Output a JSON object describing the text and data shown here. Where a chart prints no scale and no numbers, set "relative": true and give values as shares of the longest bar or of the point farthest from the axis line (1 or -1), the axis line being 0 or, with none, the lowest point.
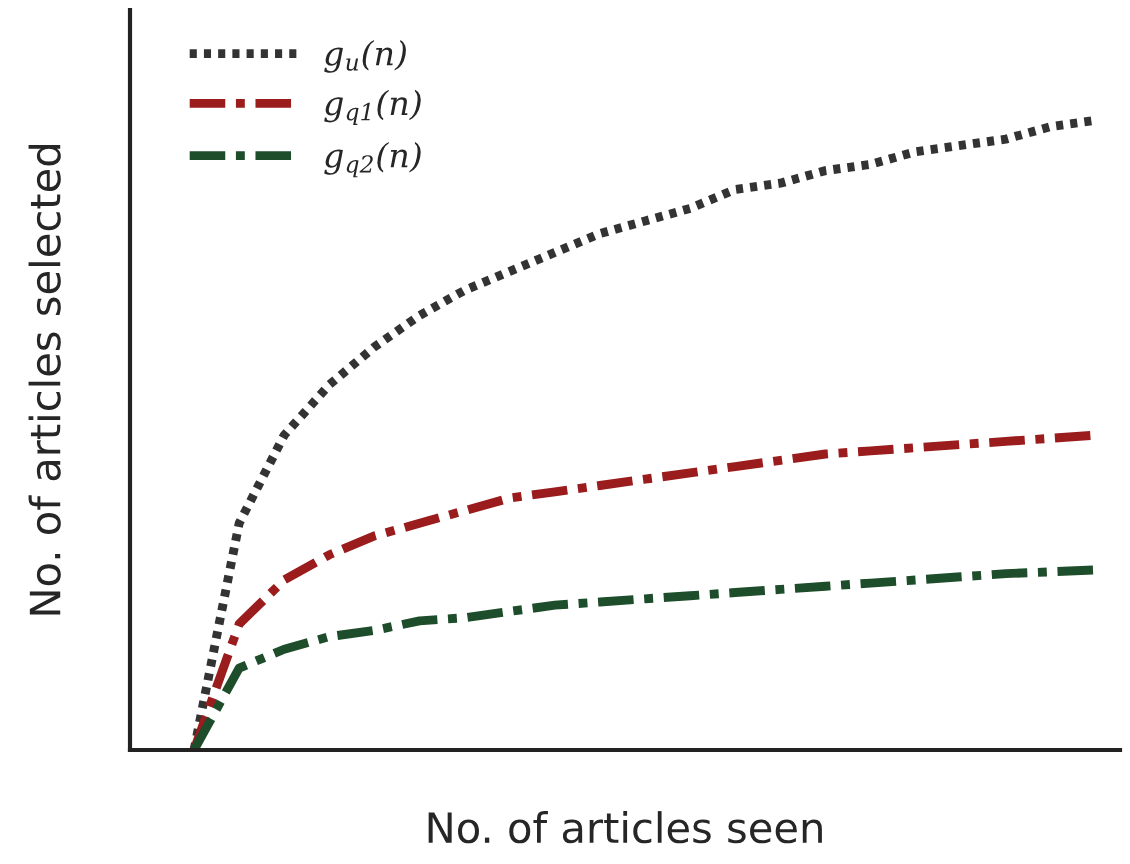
{
  "chart_data": {
    "type": "line",
    "relative": true,
    "xlabel": "No. of articles seen",
    "ylabel": "No. of articles selected",
    "categories": [
      null,
      null,
      null,
      null,
      null,
      null,
      null,
      null,
      null,
      null,
      null,
      null,
      null,
      null,
      null,
      null,
      null,
      null,
      null,
      null,
      null
    ],
    "legend": "top left",
    "grid": false,
    "tick_labels": false,
    "series": [
      {
        "name": "g$_{u}$(n)",
        "color": "#333333",
        "line_style": "dotted",
        "values": [
          0,
          0.36,
          0.5,
          0.58,
          0.64,
          0.69,
          0.73,
          0.76,
          0.79,
          0.82,
          0.84,
          0.86,
          0.89,
          0.9,
          0.92,
          0.93,
          0.95,
          0.96,
          0.97,
          0.99,
          1.0
        ]
      },
      {
        "name": "g$_{q1}$(n)",
        "color": "#9b1c1c",
        "line_style": "dashdot",
        "values": [
          0,
          0.2,
          0.27,
          0.31,
          0.34,
          0.36,
          0.38,
          0.4,
          0.41,
          0.42,
          0.43,
          0.44,
          0.45,
          0.46,
          0.47,
          0.475,
          0.48,
          0.485,
          0.49,
          0.495,
          0.5
        ]
      },
      {
        "name": "g$_{q2}$(n)",
        "color": "#1e4d2b",
        "line_style": "dashdot",
        "values": [
          0,
          0.13,
          0.16,
          0.18,
          0.19,
          0.205,
          0.21,
          0.22,
          0.23,
          0.235,
          0.24,
          0.245,
          0.25,
          0.255,
          0.26,
          0.265,
          0.27,
          0.275,
          0.28,
          0.283,
          0.286
        ]
      }
    ]
  }
}
